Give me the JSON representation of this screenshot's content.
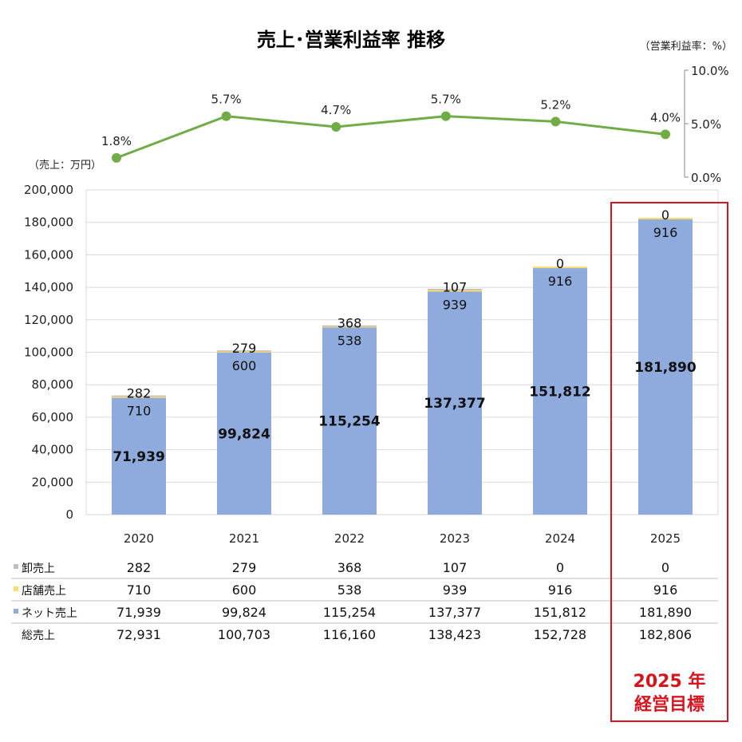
{
  "title": "売上･営業利益率 推移",
  "units": {
    "sales": "（売上：万円）",
    "margin": "（営業利益率：%）"
  },
  "highlight": {
    "line1": "2025 年",
    "line2": "経営目標",
    "color": "#d9141e"
  },
  "colors": {
    "wholesale": "#bfbfbf",
    "store": "#ffd966",
    "net": "#8faadc",
    "line": "#70ad47",
    "grid": "#d9d9d9"
  },
  "chart_data": [
    {
      "type": "bar",
      "stacked": true,
      "categories": [
        "2020",
        "2021",
        "2022",
        "2023",
        "2024",
        "2025"
      ],
      "ylim": [
        0,
        200000
      ],
      "yticks": [
        "0",
        "20,000",
        "40,000",
        "60,000",
        "80,000",
        "100,000",
        "120,000",
        "140,000",
        "160,000",
        "180,000",
        "200,000"
      ],
      "ytick_values": [
        0,
        20000,
        40000,
        60000,
        80000,
        100000,
        120000,
        140000,
        160000,
        180000,
        200000
      ],
      "grid": true,
      "series": [
        {
          "name": "ネット売上",
          "key": "net",
          "values": [
            71939,
            99824,
            115254,
            137377,
            151812,
            181890
          ],
          "labels": [
            "71,939",
            "99,824",
            "115,254",
            "137,377",
            "151,812",
            "181,890"
          ]
        },
        {
          "name": "店舗売上",
          "key": "store",
          "values": [
            710,
            600,
            538,
            939,
            916,
            916
          ],
          "labels": [
            "710",
            "600",
            "538",
            "939",
            "916",
            "916"
          ]
        },
        {
          "name": "卸売上",
          "key": "wholesale",
          "values": [
            282,
            279,
            368,
            107,
            0,
            0
          ],
          "labels": [
            "282",
            "279",
            "368",
            "107",
            "0",
            "0"
          ]
        }
      ]
    },
    {
      "type": "line",
      "categories": [
        "2020",
        "2021",
        "2022",
        "2023",
        "2024",
        "2025"
      ],
      "ylim": [
        0,
        10
      ],
      "yticks": [
        "0.0%",
        "5.0%",
        "10.0%"
      ],
      "ytick_values": [
        0,
        5,
        10
      ],
      "series": [
        {
          "name": "営業利益率",
          "values": [
            1.8,
            5.7,
            4.7,
            5.7,
            5.2,
            4.0
          ],
          "labels": [
            "1.8%",
            "5.7%",
            "4.7%",
            "5.7%",
            "5.2%",
            "4.0%"
          ]
        }
      ]
    },
    {
      "type": "table",
      "rows": [
        {
          "label": "卸売上",
          "key": "wholesale",
          "values": [
            "282",
            "279",
            "368",
            "107",
            "0",
            "0"
          ]
        },
        {
          "label": "店舗売上",
          "key": "store",
          "values": [
            "710",
            "600",
            "538",
            "939",
            "916",
            "916"
          ]
        },
        {
          "label": "ネット売上",
          "key": "net",
          "values": [
            "71,939",
            "99,824",
            "115,254",
            "137,377",
            "151,812",
            "181,890"
          ]
        },
        {
          "label": "総売上",
          "key": null,
          "values": [
            "72,931",
            "100,703",
            "116,160",
            "138,423",
            "152,728",
            "182,806"
          ]
        }
      ]
    }
  ]
}
